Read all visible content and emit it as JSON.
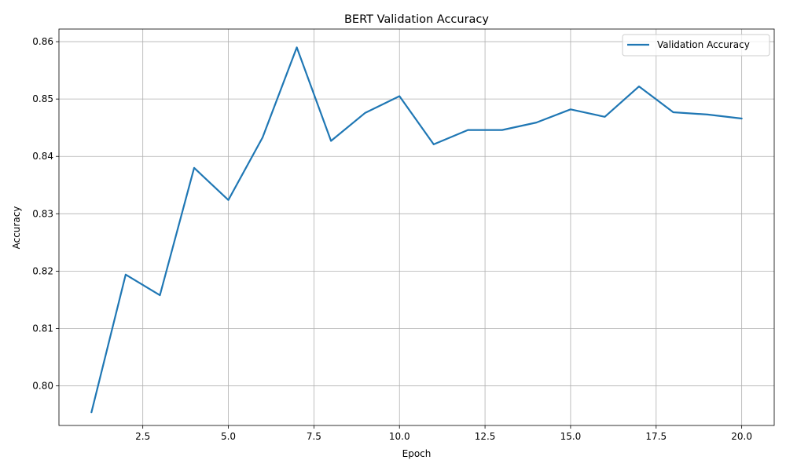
{
  "chart_data": {
    "type": "line",
    "title": "BERT Validation Accuracy",
    "xlabel": "Epoch",
    "ylabel": "Accuracy",
    "xlim": [
      0.05,
      20.95
    ],
    "ylim": [
      0.7931,
      0.8622
    ],
    "x_ticks": [
      2.5,
      5.0,
      7.5,
      10.0,
      12.5,
      15.0,
      17.5,
      20.0
    ],
    "x_tick_labels": [
      "2.5",
      "5.0",
      "7.5",
      "10.0",
      "12.5",
      "15.0",
      "17.5",
      "20.0"
    ],
    "y_ticks": [
      0.8,
      0.81,
      0.82,
      0.83,
      0.84,
      0.85,
      0.86
    ],
    "y_tick_labels": [
      "0.80",
      "0.81",
      "0.82",
      "0.83",
      "0.84",
      "0.85",
      "0.86"
    ],
    "grid": true,
    "legend_position": "top-right",
    "series": [
      {
        "name": "Validation Accuracy",
        "color": "#1f77b4",
        "x": [
          1,
          2,
          3,
          4,
          5,
          6,
          7,
          8,
          9,
          10,
          11,
          12,
          13,
          14,
          15,
          16,
          17,
          18,
          19,
          20
        ],
        "y": [
          0.7954,
          0.8194,
          0.8158,
          0.838,
          0.8324,
          0.8433,
          0.859,
          0.8427,
          0.8476,
          0.8505,
          0.8421,
          0.8446,
          0.8446,
          0.8459,
          0.8482,
          0.8469,
          0.8522,
          0.8477,
          0.8473,
          0.8466
        ]
      }
    ]
  }
}
